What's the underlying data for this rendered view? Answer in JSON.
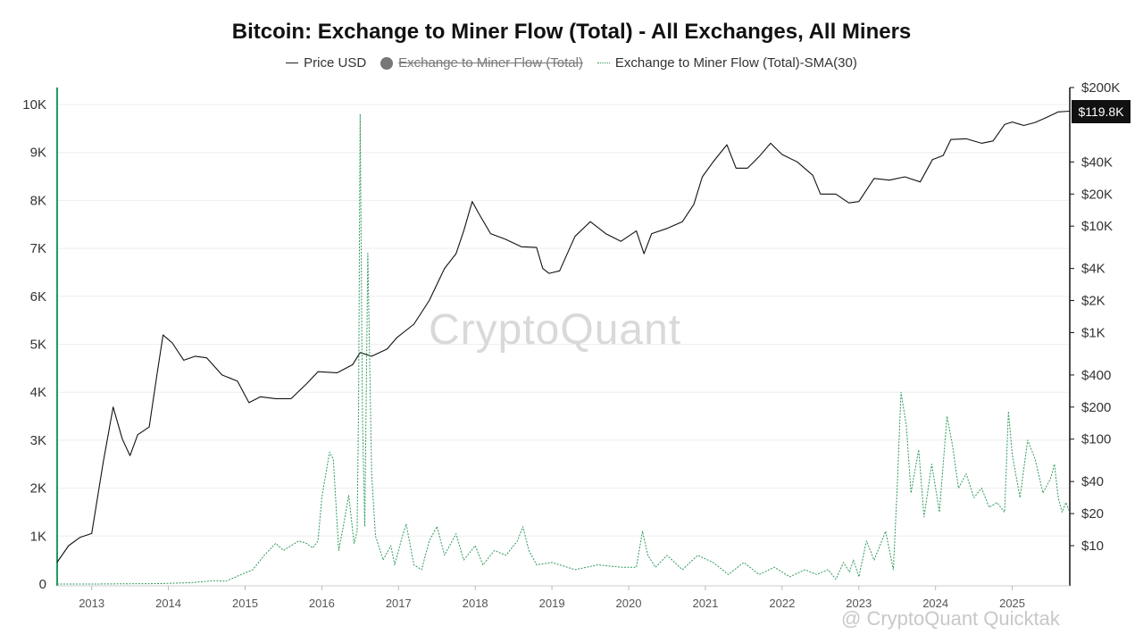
{
  "chart_data": {
    "type": "line",
    "title": "Bitcoin: Exchange to Miner Flow (Total) - All Exchanges, All Miners",
    "legend": [
      {
        "label": "Price USD",
        "style": "line",
        "hidden": false
      },
      {
        "label": "Exchange to Miner Flow (Total)",
        "style": "dot",
        "hidden": true
      },
      {
        "label": "Exchange to Miner Flow (Total)-SMA(30)",
        "style": "dotted",
        "hidden": false
      }
    ],
    "legend_position": "top-center",
    "x_ticks": [
      "2013",
      "2014",
      "2015",
      "2016",
      "2017",
      "2018",
      "2019",
      "2020",
      "2021",
      "2022",
      "2023",
      "2024",
      "2025"
    ],
    "x_range": [
      2012.55,
      2025.75
    ],
    "left_axis": {
      "ticks": [
        {
          "label": "0",
          "value": 0
        },
        {
          "label": "1K",
          "value": 1000
        },
        {
          "label": "2K",
          "value": 2000
        },
        {
          "label": "3K",
          "value": 3000
        },
        {
          "label": "4K",
          "value": 4000
        },
        {
          "label": "5K",
          "value": 5000
        },
        {
          "label": "6K",
          "value": 6000
        },
        {
          "label": "7K",
          "value": 7000
        },
        {
          "label": "8K",
          "value": 8000
        },
        {
          "label": "9K",
          "value": 9000
        },
        {
          "label": "10K",
          "value": 10000
        }
      ],
      "range": [
        0,
        10000
      ]
    },
    "right_axis": {
      "scale": "log",
      "ticks": [
        {
          "label": "$200K",
          "value": 200000
        },
        {
          "label": "$40K",
          "value": 40000
        },
        {
          "label": "$20K",
          "value": 20000
        },
        {
          "label": "$10K",
          "value": 10000
        },
        {
          "label": "$4K",
          "value": 4000
        },
        {
          "label": "$2K",
          "value": 2000
        },
        {
          "label": "$1K",
          "value": 1000
        },
        {
          "label": "$400",
          "value": 400
        },
        {
          "label": "$200",
          "value": 200
        },
        {
          "label": "$100",
          "value": 100
        },
        {
          "label": "$40",
          "value": 40
        },
        {
          "label": "$20",
          "value": 20
        },
        {
          "label": "$10",
          "value": 10
        }
      ],
      "range": [
        5,
        210000
      ]
    },
    "grid": "horizontal",
    "last_price_label": "$119.8K",
    "colors": {
      "price": "#111111",
      "flow": "#2e9b5c",
      "axis_left": "#1f9d55",
      "grid": "#eeeeee"
    },
    "series": [
      {
        "name": "Price USD",
        "axis": "right",
        "x": [
          2012.55,
          2012.7,
          2012.85,
          2013.0,
          2013.15,
          2013.28,
          2013.4,
          2013.5,
          2013.6,
          2013.75,
          2013.85,
          2013.93,
          2014.05,
          2014.2,
          2014.35,
          2014.5,
          2014.7,
          2014.9,
          2015.05,
          2015.2,
          2015.4,
          2015.6,
          2015.8,
          2015.95,
          2016.2,
          2016.4,
          2016.5,
          2016.65,
          2016.85,
          2016.98,
          2017.2,
          2017.4,
          2017.6,
          2017.75,
          2017.85,
          2017.96,
          2018.05,
          2018.2,
          2018.4,
          2018.6,
          2018.8,
          2018.88,
          2018.96,
          2019.1,
          2019.3,
          2019.5,
          2019.7,
          2019.9,
          2020.1,
          2020.2,
          2020.3,
          2020.5,
          2020.7,
          2020.85,
          2020.96,
          2021.1,
          2021.28,
          2021.4,
          2021.55,
          2021.7,
          2021.85,
          2022.0,
          2022.2,
          2022.4,
          2022.5,
          2022.7,
          2022.87,
          2023.0,
          2023.2,
          2023.4,
          2023.6,
          2023.8,
          2023.96,
          2024.1,
          2024.2,
          2024.4,
          2024.6,
          2024.75,
          2024.9,
          2025.0,
          2025.15,
          2025.3,
          2025.45,
          2025.6,
          2025.75
        ],
        "values": [
          7,
          10,
          12,
          13,
          60,
          200,
          100,
          70,
          110,
          130,
          400,
          950,
          800,
          550,
          600,
          580,
          400,
          350,
          220,
          250,
          240,
          240,
          330,
          430,
          420,
          500,
          650,
          600,
          700,
          900,
          1200,
          2000,
          4000,
          5500,
          9000,
          17000,
          13000,
          8500,
          7500,
          6400,
          6300,
          4000,
          3600,
          3800,
          8000,
          11000,
          8500,
          7200,
          9000,
          5500,
          8500,
          9500,
          11000,
          16000,
          29000,
          40000,
          58000,
          35000,
          35000,
          45000,
          60000,
          47000,
          40000,
          30000,
          20000,
          20000,
          16500,
          17000,
          28000,
          27000,
          29000,
          26000,
          42000,
          46000,
          65000,
          66000,
          60000,
          63000,
          90000,
          95000,
          88000,
          94000,
          105000,
          118000,
          119800
        ]
      },
      {
        "name": "Exchange to Miner Flow (Total)-SMA(30)",
        "axis": "left",
        "x": [
          2012.55,
          2013.0,
          2013.5,
          2013.9,
          2014.3,
          2014.6,
          2014.75,
          2014.95,
          2015.1,
          2015.25,
          2015.4,
          2015.5,
          2015.7,
          2015.8,
          2015.88,
          2015.95,
          2016.0,
          2016.1,
          2016.15,
          2016.22,
          2016.28,
          2016.35,
          2016.42,
          2016.46,
          2016.48,
          2016.5,
          2016.53,
          2016.56,
          2016.6,
          2016.65,
          2016.7,
          2016.8,
          2016.9,
          2016.95,
          2017.05,
          2017.1,
          2017.2,
          2017.3,
          2017.4,
          2017.5,
          2017.6,
          2017.75,
          2017.85,
          2018.0,
          2018.1,
          2018.25,
          2018.4,
          2018.55,
          2018.62,
          2018.7,
          2018.8,
          2019.0,
          2019.3,
          2019.6,
          2019.9,
          2020.1,
          2020.18,
          2020.25,
          2020.35,
          2020.5,
          2020.7,
          2020.9,
          2021.1,
          2021.3,
          2021.5,
          2021.7,
          2021.9,
          2022.1,
          2022.3,
          2022.45,
          2022.6,
          2022.7,
          2022.8,
          2022.88,
          2022.93,
          2023.0,
          2023.1,
          2023.2,
          2023.25,
          2023.35,
          2023.45,
          2023.5,
          2023.55,
          2023.62,
          2023.68,
          2023.78,
          2023.85,
          2023.95,
          2024.05,
          2024.15,
          2024.22,
          2024.3,
          2024.4,
          2024.5,
          2024.6,
          2024.7,
          2024.8,
          2024.9,
          2024.95,
          2025.0,
          2025.1,
          2025.2,
          2025.3,
          2025.4,
          2025.5,
          2025.55,
          2025.6,
          2025.65,
          2025.7,
          2025.75
        ],
        "values": [
          0,
          0,
          5,
          10,
          30,
          70,
          60,
          200,
          300,
          600,
          850,
          700,
          900,
          850,
          750,
          900,
          1800,
          2750,
          2600,
          700,
          1200,
          1850,
          850,
          1100,
          3800,
          9800,
          3500,
          1200,
          6900,
          2300,
          1000,
          500,
          800,
          400,
          1000,
          1250,
          400,
          300,
          900,
          1200,
          600,
          1050,
          500,
          800,
          400,
          700,
          600,
          900,
          1200,
          700,
          400,
          450,
          300,
          400,
          350,
          350,
          1100,
          600,
          350,
          600,
          300,
          600,
          450,
          200,
          450,
          200,
          350,
          150,
          300,
          200,
          300,
          100,
          450,
          250,
          500,
          150,
          900,
          500,
          700,
          1100,
          300,
          2000,
          4000,
          3300,
          1900,
          2800,
          1400,
          2500,
          1500,
          3500,
          2900,
          2000,
          2300,
          1800,
          2000,
          1600,
          1700,
          1500,
          3600,
          2700,
          1800,
          3000,
          2600,
          1900,
          2200,
          2500,
          1800,
          1500,
          1700,
          1500
        ]
      }
    ]
  },
  "watermark": "CryptoQuant",
  "attribution": "@ CryptoQuant Quicktak"
}
